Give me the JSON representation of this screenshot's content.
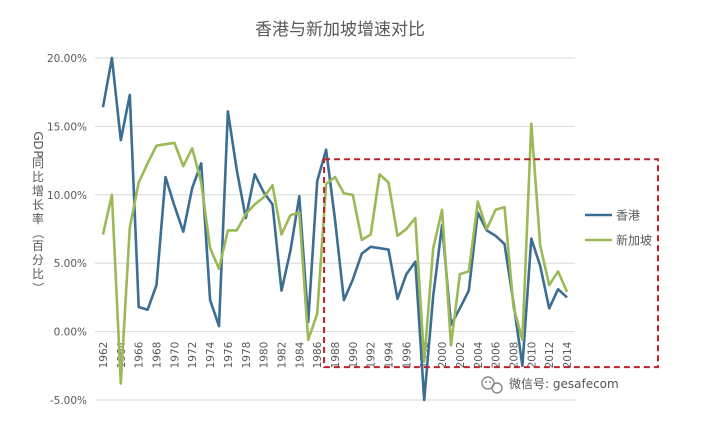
{
  "chart_data": {
    "type": "line",
    "title": "香港与新加坡增速对比",
    "ylabel": "GDP同比增长率（百分比）",
    "xlabel": "",
    "ylim": [
      -5,
      20
    ],
    "yticks": [
      "20.00%",
      "15.00%",
      "10.00%",
      "5.00%",
      "0.00%",
      "-5.00%"
    ],
    "ytick_values": [
      20,
      15,
      10,
      5,
      0,
      -5
    ],
    "grid": true,
    "legend_position": "right",
    "x": [
      1962,
      1963,
      1964,
      1965,
      1966,
      1967,
      1968,
      1969,
      1970,
      1971,
      1972,
      1973,
      1974,
      1975,
      1976,
      1977,
      1978,
      1979,
      1980,
      1981,
      1982,
      1983,
      1984,
      1985,
      1986,
      1987,
      1988,
      1989,
      1990,
      1991,
      1992,
      1993,
      1994,
      1995,
      1996,
      1997,
      1998,
      1999,
      2000,
      2001,
      2002,
      2003,
      2004,
      2005,
      2006,
      2007,
      2008,
      2009,
      2010,
      2011,
      2012,
      2013,
      2014
    ],
    "xtick_labels": [
      "1962",
      "1964",
      "1966",
      "1968",
      "1970",
      "1972",
      "1974",
      "1976",
      "1978",
      "1980",
      "1982",
      "1984",
      "1986",
      "1988",
      "1990",
      "1992",
      "1994",
      "1996",
      "1998",
      "2000",
      "2002",
      "2004",
      "2006",
      "2008",
      "2010",
      "2012",
      "2014"
    ],
    "series": [
      {
        "name": "香港",
        "color": "#3c6e94",
        "values": [
          16.4,
          20.0,
          14.0,
          17.3,
          1.8,
          1.6,
          3.4,
          11.3,
          9.2,
          7.3,
          10.5,
          12.3,
          2.3,
          0.4,
          16.1,
          11.8,
          8.3,
          11.5,
          10.2,
          9.3,
          3.0,
          5.9,
          9.9,
          0.7,
          11.0,
          13.3,
          8.2,
          2.3,
          3.8,
          5.7,
          6.2,
          6.1,
          6.0,
          2.4,
          4.2,
          5.1,
          -5.0,
          2.6,
          7.8,
          0.5,
          1.7,
          3.0,
          8.7,
          7.4,
          7.0,
          6.4,
          2.1,
          -2.5,
          6.8,
          4.8,
          1.7,
          3.1,
          2.5
        ]
      },
      {
        "name": "新加坡",
        "color": "#9bb957",
        "values": [
          7.1,
          10.0,
          -3.8,
          7.6,
          10.9,
          12.3,
          13.6,
          13.7,
          13.8,
          12.1,
          13.4,
          10.9,
          6.1,
          4.6,
          7.4,
          7.4,
          8.6,
          9.3,
          9.8,
          10.7,
          7.1,
          8.5,
          8.7,
          -0.6,
          1.3,
          10.8,
          11.3,
          10.1,
          10.0,
          6.7,
          7.1,
          11.5,
          10.9,
          7.0,
          7.5,
          8.3,
          -2.2,
          6.1,
          8.9,
          -1.0,
          4.2,
          4.4,
          9.5,
          7.5,
          8.9,
          9.1,
          1.8,
          -0.6,
          15.2,
          6.3,
          3.4,
          4.4,
          2.9
        ]
      }
    ],
    "annotation": {
      "type": "dashed-rectangle",
      "color": "#c0202a",
      "x_from": 1987,
      "x_to": 2015,
      "y_from": -2.6,
      "y_to": 12.6
    }
  },
  "watermark": {
    "text": "微信号: gesafecom",
    "icon": "wechat-icon"
  }
}
